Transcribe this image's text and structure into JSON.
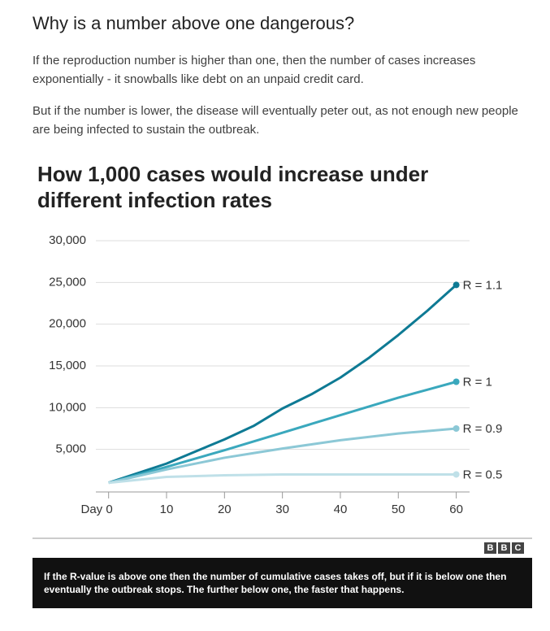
{
  "heading": "Why is a number above one dangerous?",
  "paragraphs": [
    "If the reproduction number is higher than one, then the number of cases increases exponentially - it snowballs like debt on an unpaid credit card.",
    "But if the number is lower, the disease will eventually peter out, as not enough new people are being infected to sustain the outbreak."
  ],
  "chart_data": {
    "type": "line",
    "title": "How 1,000 cases would increase under different infection rates",
    "x": [
      0,
      10,
      20,
      25,
      30,
      35,
      40,
      45,
      50,
      55,
      60
    ],
    "series": [
      {
        "name": "R = 1.1",
        "color": "#0e7a94",
        "values": [
          1000,
          3300,
          6200,
          7800,
          9900,
          11600,
          13600,
          16000,
          18700,
          21600,
          24700
        ]
      },
      {
        "name": "R = 1",
        "color": "#3aa8bd",
        "values": [
          1000,
          2900,
          4900,
          5950,
          7000,
          8050,
          9100,
          10150,
          11200,
          12150,
          13100
        ]
      },
      {
        "name": "R = 0.9",
        "color": "#8cc8d6",
        "values": [
          1000,
          2600,
          4000,
          4550,
          5100,
          5600,
          6100,
          6500,
          6900,
          7200,
          7500
        ]
      },
      {
        "name": "R = 0.5",
        "color": "#bfe0e8",
        "values": [
          1000,
          1700,
          1900,
          1950,
          2000,
          2000,
          2000,
          2000,
          2000,
          2000,
          2000
        ]
      }
    ],
    "xlim": [
      -2.2,
      62.3
    ],
    "xticks": [
      {
        "value": 0,
        "label": "Day 0"
      },
      10,
      20,
      30,
      40,
      50,
      60
    ],
    "ylim": [
      0,
      30000
    ],
    "yticks": [
      {
        "value": 5000,
        "label": "5,000"
      },
      {
        "value": 10000,
        "label": "10,000"
      },
      {
        "value": 15000,
        "label": "15,000"
      },
      {
        "value": 20000,
        "label": "20,000"
      },
      {
        "value": 25000,
        "label": "25,000"
      },
      {
        "value": 30000,
        "label": "30,000"
      }
    ],
    "grid": true
  },
  "logo": [
    "B",
    "B",
    "C"
  ],
  "caption": "If the R-value is above one then the number of cumulative cases takes off, but if it is below one then eventually the outbreak stops. The further below one, the faster that happens."
}
